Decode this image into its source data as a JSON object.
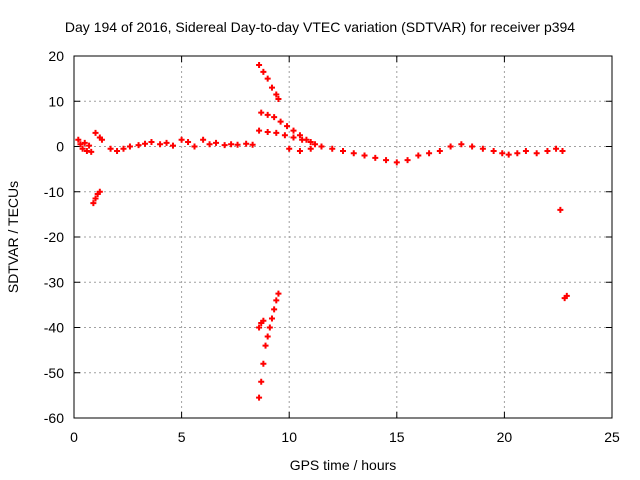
{
  "chart_data": {
    "type": "scatter",
    "title": "Day 194 of 2016, Sidereal Day-to-day VTEC variation (SDTVAR) for receiver p394",
    "xlabel": "GPS time / hours",
    "ylabel": "SDTVAR / TECUs",
    "xlim": [
      0,
      25
    ],
    "ylim": [
      -60,
      20
    ],
    "xticks": [
      "0",
      "5",
      "10",
      "15",
      "20",
      "25"
    ],
    "yticks": [
      "20",
      "10",
      "0",
      "-10",
      "-20",
      "-30",
      "-40",
      "-50",
      "-60"
    ],
    "grid": true,
    "marker": "+",
    "marker_color": "#ff0000",
    "series": [
      {
        "name": "p394",
        "points": [
          [
            0.2,
            1.5
          ],
          [
            0.3,
            0.5
          ],
          [
            0.4,
            -0.5
          ],
          [
            0.5,
            0.8
          ],
          [
            0.6,
            -1.0
          ],
          [
            0.7,
            0.2
          ],
          [
            0.8,
            -1.2
          ],
          [
            0.9,
            -12.5
          ],
          [
            1.0,
            -11.5
          ],
          [
            1.1,
            -10.5
          ],
          [
            1.2,
            -10.0
          ],
          [
            1.0,
            3.0
          ],
          [
            1.2,
            2.0
          ],
          [
            1.3,
            1.5
          ],
          [
            1.7,
            -0.5
          ],
          [
            2.0,
            -1.0
          ],
          [
            2.3,
            -0.5
          ],
          [
            2.6,
            0.0
          ],
          [
            3.0,
            0.3
          ],
          [
            3.3,
            0.6
          ],
          [
            3.6,
            1.0
          ],
          [
            4.0,
            0.5
          ],
          [
            4.3,
            0.8
          ],
          [
            4.6,
            0.2
          ],
          [
            5.0,
            1.5
          ],
          [
            5.3,
            1.0
          ],
          [
            5.6,
            0.0
          ],
          [
            6.0,
            1.5
          ],
          [
            6.3,
            0.5
          ],
          [
            6.6,
            0.8
          ],
          [
            7.0,
            0.3
          ],
          [
            7.3,
            0.5
          ],
          [
            7.6,
            0.4
          ],
          [
            8.0,
            0.6
          ],
          [
            8.3,
            0.4
          ],
          [
            8.6,
            18.0
          ],
          [
            8.8,
            16.5
          ],
          [
            9.0,
            15.0
          ],
          [
            9.2,
            13.0
          ],
          [
            9.4,
            11.5
          ],
          [
            9.5,
            10.5
          ],
          [
            8.7,
            7.5
          ],
          [
            9.0,
            7.0
          ],
          [
            9.3,
            6.5
          ],
          [
            9.6,
            5.5
          ],
          [
            9.9,
            4.5
          ],
          [
            10.2,
            3.5
          ],
          [
            10.5,
            2.5
          ],
          [
            10.8,
            1.5
          ],
          [
            11.2,
            0.5
          ],
          [
            8.6,
            3.5
          ],
          [
            9.0,
            3.2
          ],
          [
            9.4,
            3.0
          ],
          [
            9.8,
            2.5
          ],
          [
            10.2,
            2.0
          ],
          [
            10.6,
            1.5
          ],
          [
            11.0,
            1.0
          ],
          [
            10.0,
            -0.5
          ],
          [
            10.5,
            -1.0
          ],
          [
            11.0,
            -0.5
          ],
          [
            11.5,
            0.0
          ],
          [
            12.0,
            -0.5
          ],
          [
            12.5,
            -1.0
          ],
          [
            13.0,
            -1.5
          ],
          [
            13.5,
            -2.0
          ],
          [
            14.0,
            -2.5
          ],
          [
            14.5,
            -3.0
          ],
          [
            15.0,
            -3.5
          ],
          [
            15.5,
            -3.0
          ],
          [
            16.0,
            -2.0
          ],
          [
            16.5,
            -1.5
          ],
          [
            17.0,
            -1.0
          ],
          [
            17.5,
            0.0
          ],
          [
            18.0,
            0.5
          ],
          [
            18.5,
            0.0
          ],
          [
            19.0,
            -0.5
          ],
          [
            19.5,
            -1.0
          ],
          [
            19.9,
            -1.5
          ],
          [
            20.2,
            -1.8
          ],
          [
            20.6,
            -1.5
          ],
          [
            21.0,
            -1.0
          ],
          [
            21.5,
            -1.5
          ],
          [
            22.0,
            -1.0
          ],
          [
            22.4,
            -0.5
          ],
          [
            22.7,
            -1.0
          ],
          [
            22.6,
            -14.0
          ],
          [
            22.8,
            -33.5
          ],
          [
            22.9,
            -33.0
          ],
          [
            8.6,
            -55.5
          ],
          [
            8.7,
            -52.0
          ],
          [
            8.8,
            -48.0
          ],
          [
            8.9,
            -44.0
          ],
          [
            9.0,
            -42.0
          ],
          [
            9.1,
            -40.0
          ],
          [
            9.2,
            -38.0
          ],
          [
            9.3,
            -36.0
          ],
          [
            9.4,
            -34.0
          ],
          [
            9.5,
            -32.5
          ],
          [
            8.6,
            -40.0
          ],
          [
            8.7,
            -39.0
          ],
          [
            8.8,
            -38.5
          ]
        ]
      }
    ]
  }
}
